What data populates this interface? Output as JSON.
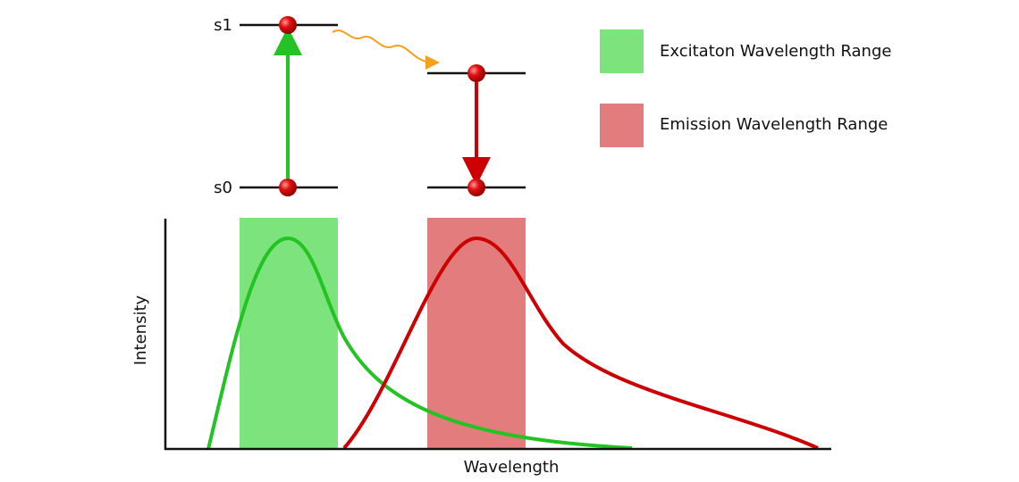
{
  "energy_levels": {
    "upper": "s1",
    "lower": "s0"
  },
  "legend": [
    {
      "label": "Excitaton Wavelength Range"
    },
    {
      "label": "Emission Wavelength Range"
    }
  ],
  "axes": {
    "y_label": "Intensity",
    "x_label": "Wavelength"
  }
}
